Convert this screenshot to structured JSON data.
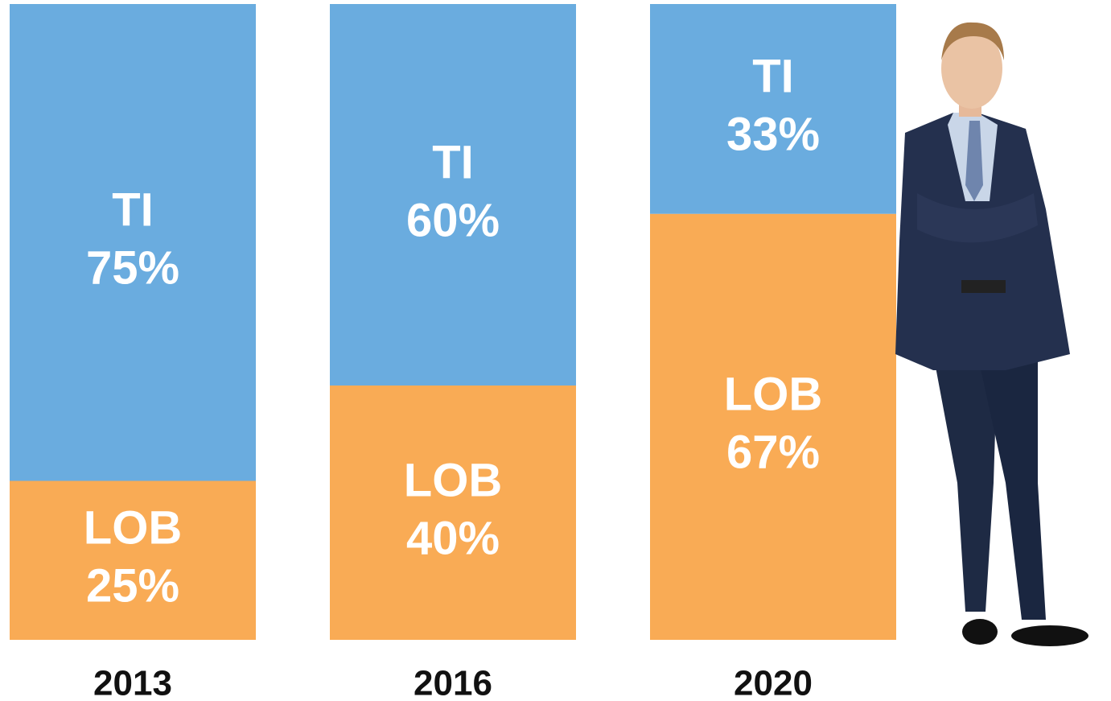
{
  "chart_data": {
    "type": "stacked-bar",
    "categories": [
      "2013",
      "2016",
      "2020"
    ],
    "series": [
      {
        "name": "LOB",
        "color": "#f9ab55",
        "values": [
          25,
          40,
          67
        ],
        "value_labels": [
          "25%",
          "40%",
          "67%"
        ]
      },
      {
        "name": "TI",
        "color": "#6aacdf",
        "values": [
          75,
          60,
          33
        ],
        "value_labels": [
          "75%",
          "60%",
          "33%"
        ]
      }
    ],
    "ylim": [
      0,
      100
    ]
  }
}
